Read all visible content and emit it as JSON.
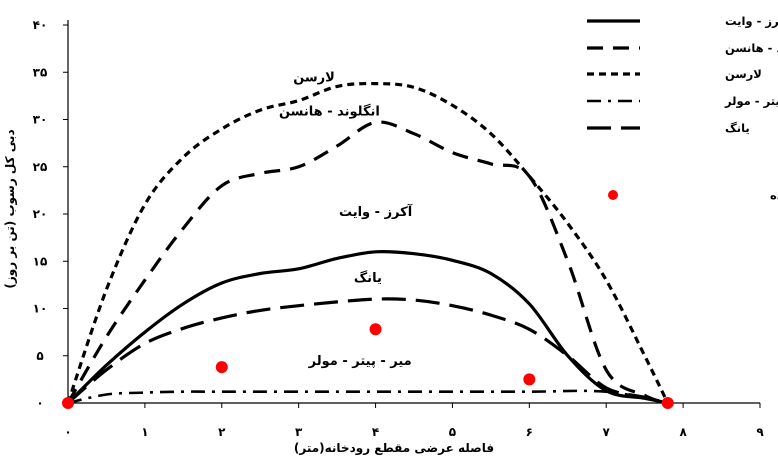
{
  "chart_data": {
    "type": "line",
    "xlabel": "فاصله عرضی مقطع رودخانه(متر)",
    "ylabel": "دبی کل رسوب (تن بر روز)",
    "xlim": [
      0,
      9
    ],
    "ylim": [
      0,
      40
    ],
    "x_ticks": [
      0,
      1,
      2,
      3,
      4,
      5,
      6,
      7,
      8,
      9
    ],
    "x_tick_labels": [
      "۰",
      "۱",
      "۲",
      "۳",
      "۴",
      "۵",
      "۶",
      "۷",
      "۸",
      "۹"
    ],
    "y_ticks": [
      0,
      5,
      10,
      15,
      20,
      25,
      30,
      35,
      40
    ],
    "y_tick_labels": [
      "۰",
      "۵",
      "۱۰",
      "۱۵",
      "۲۰",
      "۲۵",
      "۳۰",
      "۳۵",
      "۴۰"
    ],
    "legend_position": "top-right",
    "series": [
      {
        "name": "آکرز - وایت",
        "style": "solid",
        "x": [
          0,
          0.5,
          1,
          1.5,
          2,
          2.5,
          3,
          3.5,
          4,
          4.5,
          5,
          5.5,
          6,
          6.5,
          7,
          7.5,
          7.8
        ],
        "y": [
          0,
          4,
          7.5,
          10.5,
          12.7,
          13.7,
          14.2,
          15.3,
          16,
          15.8,
          15.1,
          13.7,
          10.5,
          5,
          1.3,
          0.5,
          0
        ],
        "annotation": "آکرز - وایت"
      },
      {
        "name": "انگلوند - هانسن",
        "style": "long-dash",
        "x": [
          0,
          0.5,
          1,
          1.5,
          2,
          2.5,
          3,
          3.5,
          4,
          4.5,
          5,
          5.5,
          6,
          6.5,
          7,
          7.5,
          7.8
        ],
        "y": [
          0,
          7,
          13,
          18.5,
          23,
          24.3,
          25,
          27.2,
          29.7,
          28.5,
          26.5,
          25.3,
          24,
          15,
          3.5,
          0.8,
          0
        ],
        "annotation": "انگلوند - هانسن"
      },
      {
        "name": "لارسن",
        "style": "short-dash",
        "x": [
          0,
          0.5,
          1,
          1.5,
          2,
          2.5,
          3,
          3.5,
          4,
          4.5,
          5,
          5.5,
          6,
          6.5,
          7,
          7.5,
          7.8
        ],
        "y": [
          0,
          12,
          21,
          26,
          29,
          31,
          32,
          33.5,
          33.8,
          33.4,
          31.5,
          28.5,
          24,
          19,
          13,
          5,
          0
        ],
        "annotation": "لارسن"
      },
      {
        "name": "میر - پیتر - مولر",
        "style": "dash-dot",
        "x": [
          0,
          0.5,
          1,
          1.5,
          2,
          3,
          4,
          5,
          6,
          7,
          7.8
        ],
        "y": [
          0,
          0.9,
          1.1,
          1.2,
          1.2,
          1.2,
          1.2,
          1.2,
          1.2,
          1.2,
          0
        ],
        "annotation": "میر - پیتر - مولر"
      },
      {
        "name": "یانگ",
        "style": "long-dash-thin",
        "x": [
          0,
          0.5,
          1,
          1.5,
          2,
          2.5,
          3,
          3.5,
          4,
          4.5,
          5,
          5.5,
          6,
          6.5,
          7,
          7.5,
          7.8
        ],
        "y": [
          0,
          3.5,
          6.3,
          7.9,
          9.0,
          9.8,
          10.3,
          10.7,
          11.0,
          10.9,
          10.3,
          9.3,
          7.8,
          5.0,
          1.6,
          0.6,
          0
        ],
        "annotation": "یانگ"
      }
    ],
    "measured": {
      "name": "داده های اندازه گیری شده",
      "x": [
        0,
        2,
        4,
        6,
        7.8
      ],
      "y": [
        0,
        3.8,
        7.8,
        2.5,
        0
      ]
    }
  }
}
